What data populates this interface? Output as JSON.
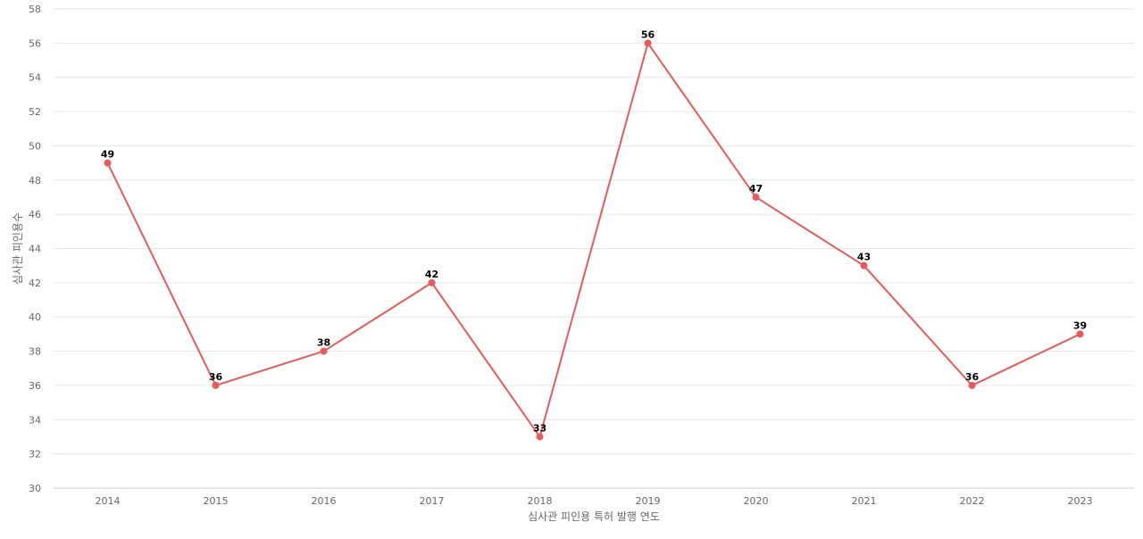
{
  "chart_data": {
    "type": "line",
    "title": "",
    "xlabel": "심사관 피인용 특허 발행 연도",
    "ylabel": "심사관 피인용수",
    "categories": [
      "2014",
      "2015",
      "2016",
      "2017",
      "2018",
      "2019",
      "2020",
      "2021",
      "2022",
      "2023"
    ],
    "series": [
      {
        "name": "",
        "values": [
          49,
          36,
          38,
          42,
          33,
          56,
          47,
          43,
          36,
          39
        ],
        "color": "#e85a5a"
      }
    ],
    "ylim": [
      30,
      58
    ],
    "yticks": [
      30,
      32,
      34,
      36,
      38,
      40,
      42,
      44,
      46,
      48,
      50,
      52,
      54,
      56,
      58
    ],
    "grid": true,
    "legend": "none",
    "data_labels": true
  }
}
